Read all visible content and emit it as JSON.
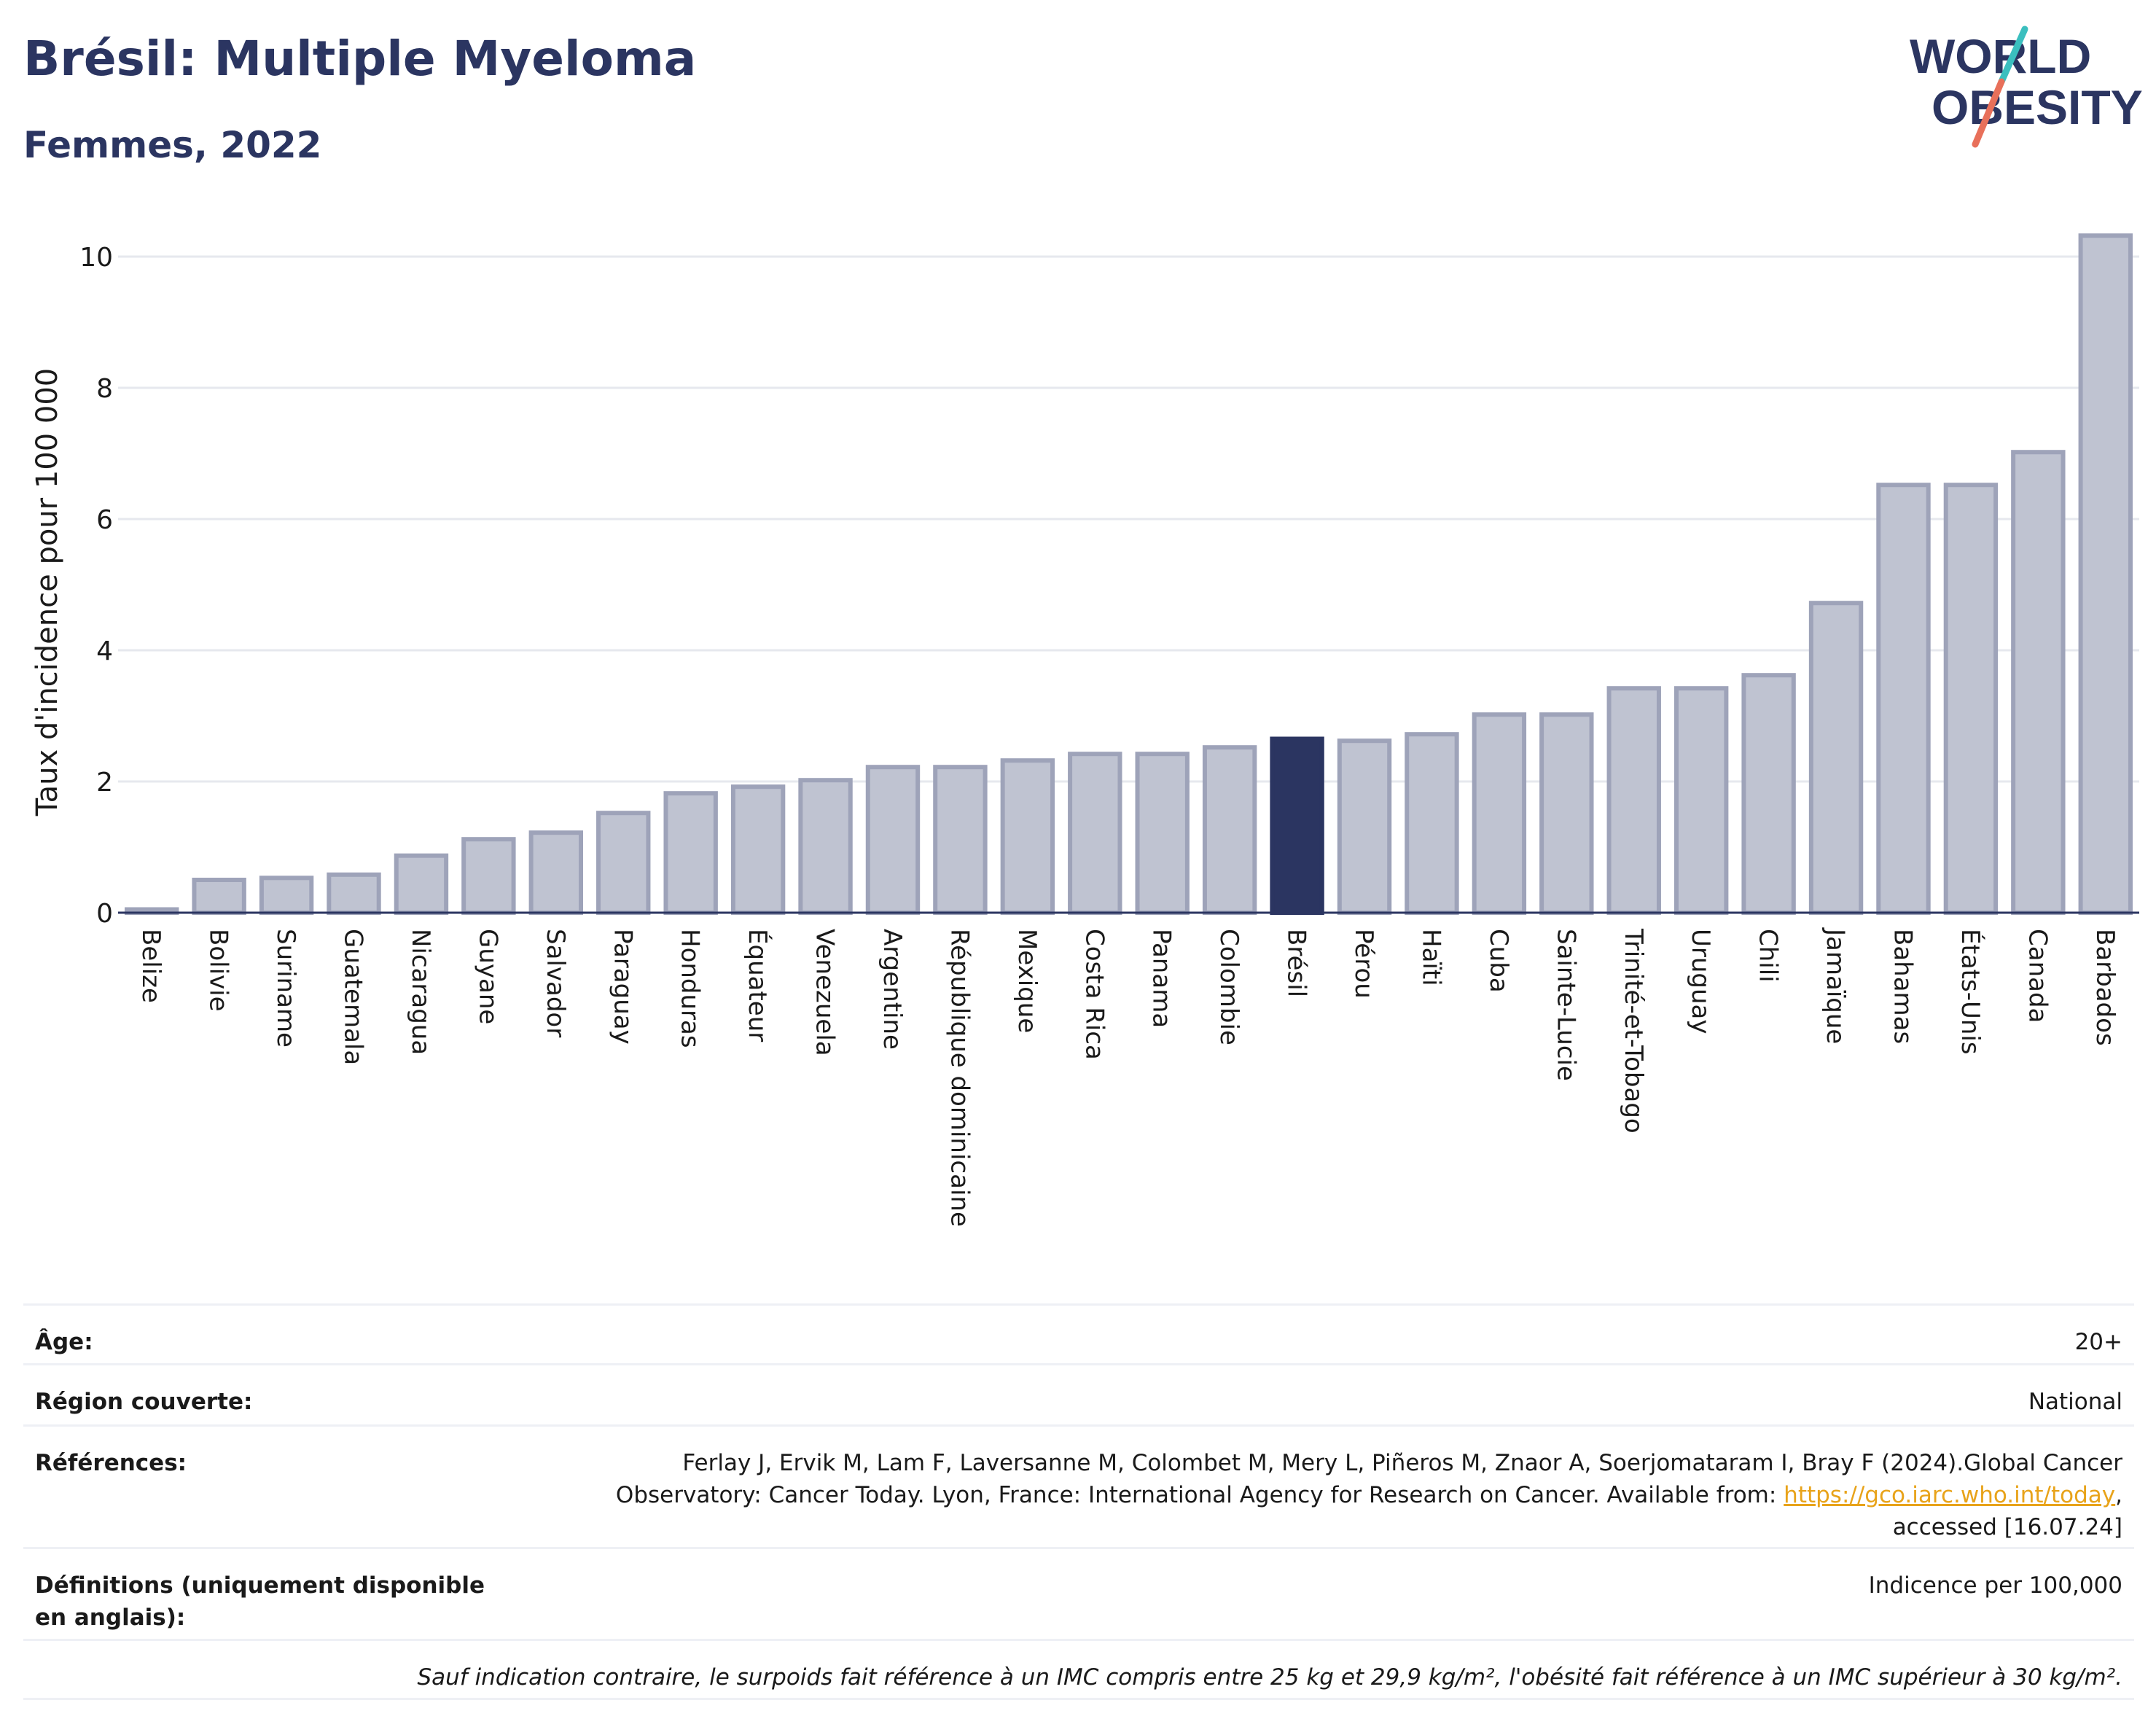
{
  "header": {
    "title": "Brésil: Multiple Myeloma",
    "subtitle": "Femmes, 2022",
    "logo_line1": "WORLD",
    "logo_line2": "OBESITY"
  },
  "colors": {
    "bar": "#bfc3d1",
    "bar_stroke": "#9ea3b9",
    "highlight": "#2b3561",
    "grid": "#e6e8ee",
    "logo_text": "#2b3561",
    "logo_teal": "#3bbfbf",
    "logo_coral": "#e8705a"
  },
  "chart_data": {
    "type": "bar",
    "ylabel": "Taux d'incidence pour 100 000",
    "ylim": [
      0,
      10.5
    ],
    "yticks": [
      0,
      2,
      4,
      6,
      8,
      10
    ],
    "highlight": "Brésil",
    "grid": true,
    "categories": [
      "Belize",
      "Bolivie",
      "Suriname",
      "Guatemala",
      "Nicaragua",
      "Guyane",
      "Salvador",
      "Paraguay",
      "Honduras",
      "Équateur",
      "Venezuela",
      "Argentine",
      "République dominicaine",
      "Mexique",
      "Costa Rica",
      "Panama",
      "Colombie",
      "Brésil",
      "Pérou",
      "Haïti",
      "Cuba",
      "Sainte-Lucie",
      "Trinité-et-Tobago",
      "Uruguay",
      "Chili",
      "Jamaïque",
      "Bahamas",
      "États-Unis",
      "Canada",
      "Barbados"
    ],
    "values": [
      0.05,
      0.5,
      0.53,
      0.58,
      0.87,
      1.12,
      1.22,
      1.52,
      1.82,
      1.92,
      2.02,
      2.22,
      2.22,
      2.32,
      2.42,
      2.42,
      2.52,
      2.65,
      2.62,
      2.72,
      3.02,
      3.02,
      3.42,
      3.42,
      3.62,
      4.72,
      6.52,
      6.52,
      7.02,
      10.32
    ]
  },
  "info": {
    "age_label": "Âge:",
    "age_value": "20+",
    "region_label": "Région couverte:",
    "region_value": "National",
    "references_label": "Références:",
    "references_text_1": "Ferlay J, Ervik M, Lam F, Laversanne M, Colombet M, Mery L, Piñeros M, Znaor A, Soerjomataram I, Bray F (2024).Global Cancer",
    "references_text_2": "Observatory: Cancer Today. Lyon, France: International Agency for Research on Cancer. Available from: ",
    "references_link": "https://gco.iarc.who.int/today",
    "references_text_3": ",",
    "references_text_4": "accessed [16.07.24]",
    "definitions_label": "Définitions (uniquement disponible en anglais):",
    "definitions_value": "Indicence per 100,000",
    "note": "Sauf indication contraire, le surpoids fait référence à un IMC compris entre 25 kg et 29,9 kg/m², l'obésité fait référence à un IMC supérieur à 30 kg/m²."
  }
}
